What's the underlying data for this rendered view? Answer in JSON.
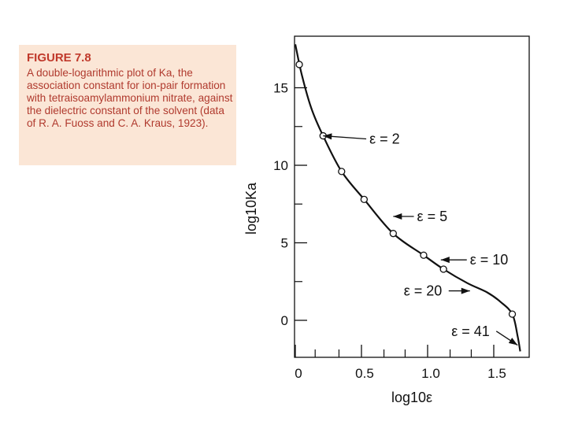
{
  "caption": {
    "title": "FIGURE 7.8",
    "text": "A double-logarithmic plot of Ka, the association constant for ion-pair formation with tetraisoamylammonium nitrate, against the dielectric constant of the solvent (data of R. A. Fuoss and C. A. Kraus, 1923).",
    "text_color": "#b03a2e",
    "title_color": "#c0392b",
    "background": "#fbe6d6"
  },
  "chart_data": {
    "type": "line",
    "title": "",
    "xlabel": "log10ε",
    "ylabel": "log10Ka",
    "xlim": [
      0,
      1.7
    ],
    "ylim": [
      -2.8,
      18
    ],
    "grid": false,
    "x_ticks": [
      {
        "value": 0,
        "label": "0"
      },
      {
        "value": 0.5,
        "label": "0.5"
      },
      {
        "value": 1.0,
        "label": "1.0"
      },
      {
        "value": 1.5,
        "label": "1.5"
      }
    ],
    "x_minor_ticks": [
      0.15,
      0.33,
      0.67,
      0.83,
      1.17,
      1.33
    ],
    "y_ticks": [
      {
        "value": 0,
        "label": "0"
      },
      {
        "value": 5,
        "label": "5"
      },
      {
        "value": 10,
        "label": "10"
      },
      {
        "value": 15,
        "label": "15"
      }
    ],
    "y_minor_ticks": [
      2.5,
      7.5,
      12.5
    ],
    "series": [
      {
        "points": [
          {
            "x": 0.03,
            "y": 16.5
          },
          {
            "x": 0.21,
            "y": 11.9
          },
          {
            "x": 0.35,
            "y": 9.6
          },
          {
            "x": 0.52,
            "y": 7.8
          },
          {
            "x": 0.74,
            "y": 5.6
          },
          {
            "x": 0.97,
            "y": 4.2
          },
          {
            "x": 1.12,
            "y": 3.3
          },
          {
            "x": 1.64,
            "y": 0.4
          }
        ],
        "curve": [
          {
            "x": 0.0,
            "y": 17.8
          },
          {
            "x": 0.05,
            "y": 15.8
          },
          {
            "x": 0.12,
            "y": 13.7
          },
          {
            "x": 0.21,
            "y": 11.9
          },
          {
            "x": 0.35,
            "y": 9.6
          },
          {
            "x": 0.52,
            "y": 7.8
          },
          {
            "x": 0.74,
            "y": 5.6
          },
          {
            "x": 0.97,
            "y": 4.2
          },
          {
            "x": 1.12,
            "y": 3.3
          },
          {
            "x": 1.3,
            "y": 2.4
          },
          {
            "x": 1.45,
            "y": 1.8
          },
          {
            "x": 1.55,
            "y": 1.2
          },
          {
            "x": 1.64,
            "y": 0.4
          },
          {
            "x": 1.68,
            "y": -1.0
          },
          {
            "x": 1.7,
            "y": -2.0
          }
        ]
      }
    ],
    "annotations": [
      {
        "label": "ε = 2",
        "x": 0.21,
        "y": 11.9,
        "text_x": 0.56,
        "text_y": 11.7
      },
      {
        "label": "ε = 5",
        "x": 0.74,
        "y": 6.7,
        "text_x": 0.92,
        "text_y": 6.7
      },
      {
        "label": "ε = 10",
        "x": 1.1,
        "y": 3.9,
        "text_x": 1.32,
        "text_y": 3.9
      },
      {
        "label": "ε = 20",
        "x": 1.32,
        "y": 1.9,
        "text_x": 0.82,
        "text_y": 1.9
      },
      {
        "label": "ε = 41",
        "x": 1.68,
        "y": -1.6,
        "text_x": 1.18,
        "text_y": -0.7
      }
    ]
  }
}
